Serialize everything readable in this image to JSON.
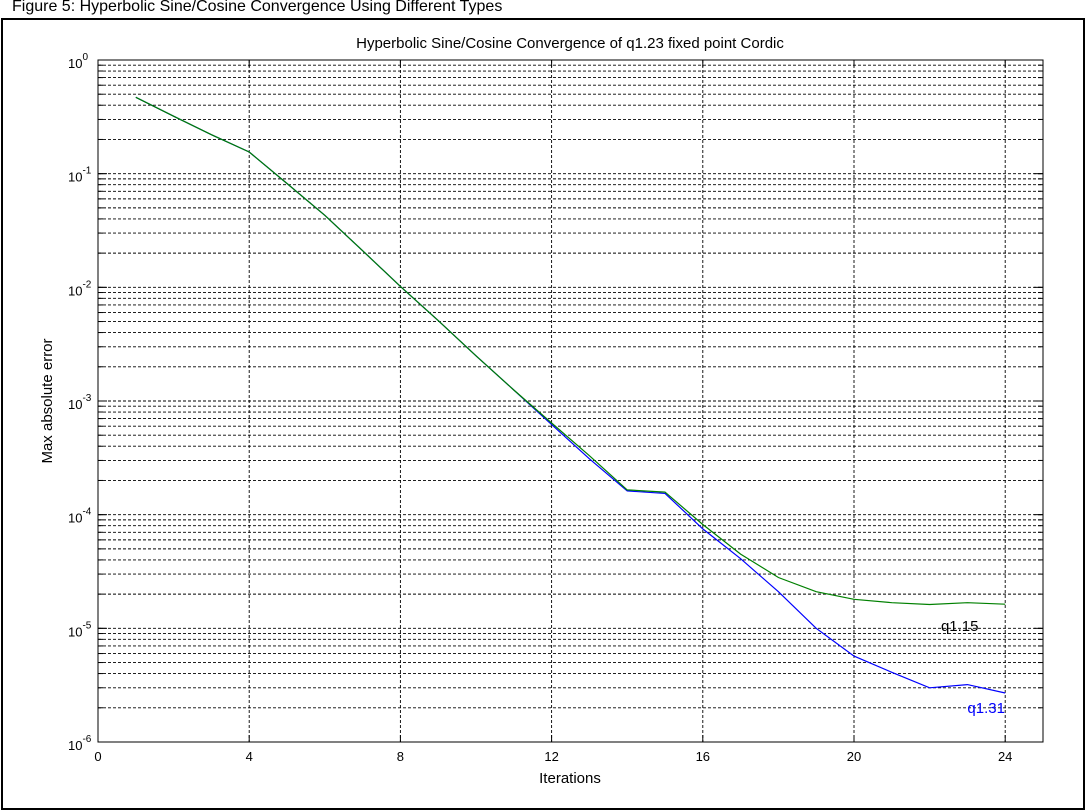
{
  "top_caption": "Figure 5: Hyperbolic Sine/Cosine Convergence Using Different Types",
  "chart_data": {
    "type": "line",
    "title": "Hyperbolic Sine/Cosine Convergence of q1.23 fixed point Cordic",
    "xlabel": "Iterations",
    "ylabel": "Max absolute error",
    "xlim": [
      0,
      25
    ],
    "ylim": [
      1e-06,
      1
    ],
    "yscale": "log",
    "grid": true,
    "x_ticks": [
      0,
      4,
      8,
      12,
      16,
      20,
      24
    ],
    "y_ticks": [
      {
        "value": 1,
        "base": "10",
        "exp": "0"
      },
      {
        "value": 0.1,
        "base": "10",
        "exp": "-1"
      },
      {
        "value": 0.01,
        "base": "10",
        "exp": "-2"
      },
      {
        "value": 0.001,
        "base": "10",
        "exp": "-3"
      },
      {
        "value": 0.0001,
        "base": "10",
        "exp": "-4"
      },
      {
        "value": 1e-05,
        "base": "10",
        "exp": "-5"
      },
      {
        "value": 1e-06,
        "base": "10",
        "exp": "-6"
      }
    ],
    "series": [
      {
        "name": "q1.31",
        "color": "#0000ff",
        "x": [
          1,
          2,
          3,
          4,
          5,
          6,
          7,
          8,
          9,
          10,
          11,
          12,
          13,
          14,
          15,
          16,
          17,
          18,
          19,
          20,
          21,
          22,
          23,
          24
        ],
        "y": [
          0.47,
          0.32,
          0.22,
          0.155,
          0.082,
          0.043,
          0.021,
          0.0102,
          0.0051,
          0.0025,
          0.00125,
          0.00062,
          0.00031,
          0.000162,
          0.000154,
          7.5e-05,
          4.1e-05,
          2.1e-05,
          1e-05,
          5.7e-06,
          4.1e-06,
          3e-06,
          3.2e-06,
          2.7e-06
        ]
      },
      {
        "name": "q1.15",
        "color": "#008000",
        "x": [
          1,
          2,
          3,
          4,
          5,
          6,
          7,
          8,
          9,
          10,
          11,
          12,
          13,
          14,
          15,
          16,
          17,
          18,
          19,
          20,
          21,
          22,
          23,
          24
        ],
        "y": [
          0.47,
          0.32,
          0.22,
          0.155,
          0.082,
          0.043,
          0.021,
          0.0102,
          0.0051,
          0.0025,
          0.00125,
          0.00064,
          0.00033,
          0.000165,
          0.000158,
          8.2e-05,
          4.5e-05,
          2.8e-05,
          2.1e-05,
          1.8e-05,
          1.68e-05,
          1.62e-05,
          1.68e-05,
          1.63e-05
        ]
      }
    ],
    "annotations": [
      {
        "text": "q1.15",
        "x": 22.3,
        "y": 9.5e-06,
        "color": "#000000"
      },
      {
        "text": "q1.31",
        "x": 23.0,
        "y": 1.8e-06,
        "color": "#0000ff"
      }
    ]
  }
}
